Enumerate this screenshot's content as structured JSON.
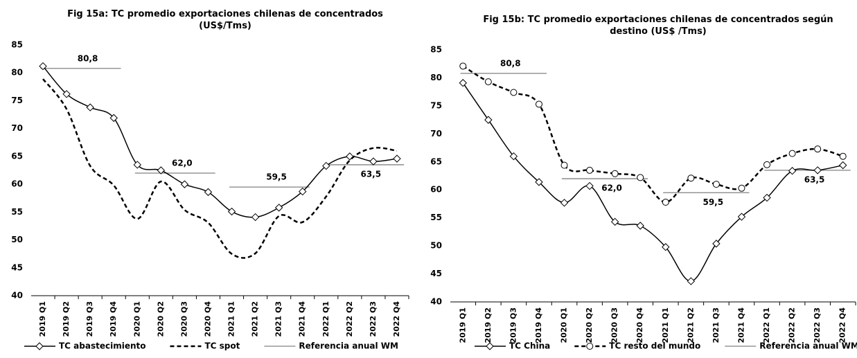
{
  "chart_data": [
    {
      "type": "line",
      "title": "Fig 15a: TC promedio exportaciones chilenas de concentrados (US$/Tms)",
      "categories": [
        "2019 Q1",
        "2019 Q2",
        "2019 Q3",
        "2019 Q4",
        "2020 Q1",
        "2020 Q2",
        "2020 Q3",
        "2020 Q4",
        "2021 Q1",
        "2021 Q2",
        "2021 Q3",
        "2021 Q4",
        "2022 Q1",
        "2022 Q2",
        "2022 Q3",
        "2022 Q4"
      ],
      "series": [
        {
          "name": "TC abastecimiento",
          "color": "#000000",
          "dash": "solid",
          "marker": "diamond",
          "values": [
            81.2,
            76.2,
            73.8,
            71.9,
            63.5,
            62.5,
            60.0,
            58.6,
            55.1,
            54.1,
            55.8,
            58.7,
            63.3,
            65.0,
            64.1,
            64.6
          ]
        },
        {
          "name": "TC spot",
          "color": "#000000",
          "dash": "dashed",
          "marker": "none",
          "values": [
            78.9,
            73.5,
            63.3,
            59.8,
            53.8,
            60.5,
            55.4,
            53.1,
            47.5,
            47.6,
            54.3,
            53.2,
            57.8,
            64.3,
            66.5,
            66.0
          ]
        }
      ],
      "reference": {
        "name": "Referencia anual WM",
        "color": "#808080",
        "values": [
          80.8,
          62.0,
          59.5,
          63.5
        ],
        "value_labels": [
          "80,8",
          "62,0",
          "59,5",
          "63,5"
        ]
      },
      "ylim": [
        40,
        85
      ],
      "yticks": [
        40,
        45,
        50,
        55,
        60,
        65,
        70,
        75,
        80,
        85
      ],
      "grid": false
    },
    {
      "type": "line",
      "title": "Fig 15b: TC promedio exportaciones chilenas de concentrados según destino (US$ /Tms)",
      "categories": [
        "2019 Q1",
        "2019 Q2",
        "2019 Q3",
        "2019 Q4",
        "2020 Q1",
        "2020 Q2",
        "2020 Q3",
        "2020 Q4",
        "2021 Q1",
        "2021 Q2",
        "2021 Q3",
        "2021 Q4",
        "2022 Q1",
        "2022 Q2",
        "2022 Q3",
        "2022 Q4"
      ],
      "series": [
        {
          "name": "TC China",
          "color": "#000000",
          "dash": "solid",
          "marker": "diamond",
          "values": [
            79.1,
            72.5,
            66.0,
            61.4,
            57.7,
            60.7,
            54.3,
            53.6,
            49.8,
            43.7,
            50.4,
            55.2,
            58.6,
            63.4,
            63.5,
            64.4
          ]
        },
        {
          "name": "TC resto del mundo",
          "color": "#000000",
          "dash": "dashed",
          "marker": "circle",
          "values": [
            82.1,
            79.3,
            77.4,
            75.3,
            64.4,
            63.5,
            62.9,
            62.2,
            57.8,
            62.1,
            61.0,
            60.3,
            64.5,
            66.5,
            67.3,
            66.0
          ]
        }
      ],
      "reference": {
        "name": "Referencia anual WM",
        "color": "#808080",
        "values": [
          80.8,
          62.0,
          59.5,
          63.5
        ],
        "value_labels": [
          "80,8",
          "62,0",
          "59,5",
          "63,5"
        ]
      },
      "ylim": [
        40,
        85
      ],
      "yticks": [
        40,
        45,
        50,
        55,
        60,
        65,
        70,
        75,
        80,
        85
      ],
      "grid": false
    }
  ]
}
